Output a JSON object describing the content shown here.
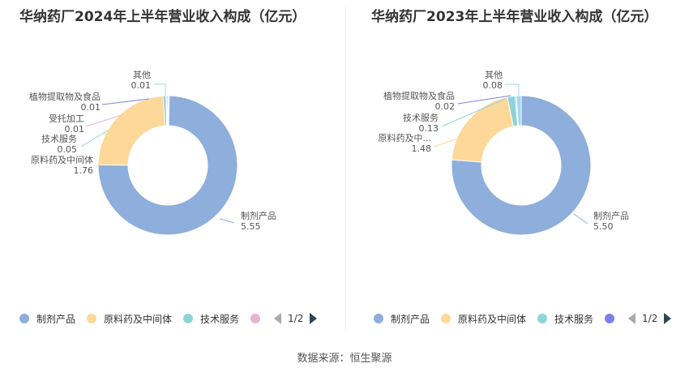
{
  "charts": [
    {
      "title": "华纳药厂2024年上半年营业收入构成（亿元）",
      "legend": [
        "制剂产品",
        "原料药及中间体",
        "技术服务",
        ""
      ],
      "pager": "1/2",
      "labels": [
        {
          "name": "制剂产品",
          "value": "5.55"
        },
        {
          "name": "原料药及中间体",
          "value": "1.76"
        },
        {
          "name": "技术服务",
          "value": "0.05"
        },
        {
          "name": "受托加工",
          "value": "0.01"
        },
        {
          "name": "植物提取物及食品",
          "value": "0.01"
        },
        {
          "name": "其他",
          "value": "0.01"
        }
      ]
    },
    {
      "title": "华纳药厂2023年上半年营业收入构成（亿元）",
      "legend": [
        "制剂产品",
        "原料药及中间体",
        "技术服务",
        ""
      ],
      "pager": "1/2",
      "labels": [
        {
          "name": "制剂产品",
          "value": "5.50"
        },
        {
          "name": "原料药及中...",
          "value": "1.48"
        },
        {
          "name": "技术服务",
          "value": "0.13"
        },
        {
          "name": "植物提取物及食品",
          "value": "0.02"
        },
        {
          "name": "其他",
          "value": "0.08"
        }
      ]
    }
  ],
  "source": "数据来源：恒生聚源",
  "chart_data": [
    {
      "type": "pie",
      "title": "华纳药厂2024年上半年营业收入构成（亿元）",
      "categories": [
        "制剂产品",
        "原料药及中间体",
        "技术服务",
        "受托加工",
        "植物提取物及食品",
        "其他"
      ],
      "values": [
        5.55,
        1.76,
        0.05,
        0.01,
        0.01,
        0.01
      ],
      "colors": [
        "#8eaedc",
        "#fdd898",
        "#8dd4d8",
        "#e8b3d3",
        "#7d7fe6",
        "#9fd9ee"
      ],
      "legend_position": "bottom"
    },
    {
      "type": "pie",
      "title": "华纳药厂2023年上半年营业收入构成（亿元）",
      "categories": [
        "制剂产品",
        "原料药及中间体",
        "技术服务",
        "植物提取物及食品",
        "其他"
      ],
      "values": [
        5.5,
        1.48,
        0.13,
        0.02,
        0.08
      ],
      "colors": [
        "#8eaedc",
        "#fdd898",
        "#8dd4d8",
        "#7d7fe6",
        "#9fd9ee"
      ],
      "legend_position": "bottom"
    }
  ]
}
